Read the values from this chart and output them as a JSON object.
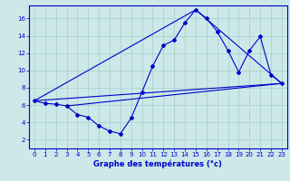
{
  "background_color": "#cce8e8",
  "line_color": "#0000cc",
  "grid_color": "#aacccc",
  "xlim": [
    -0.5,
    23.5
  ],
  "ylim": [
    1,
    17.5
  ],
  "xticks": [
    0,
    1,
    2,
    3,
    4,
    5,
    6,
    7,
    8,
    9,
    10,
    11,
    12,
    13,
    14,
    15,
    16,
    17,
    18,
    19,
    20,
    21,
    22,
    23
  ],
  "yticks": [
    2,
    4,
    6,
    8,
    10,
    12,
    14,
    16
  ],
  "xlabel": "Graphe des températures (°c)",
  "hourly_x": [
    0,
    1,
    2,
    3,
    4,
    5,
    6,
    7,
    8,
    9,
    10,
    11,
    12,
    13,
    14,
    15,
    16,
    17,
    18,
    19,
    20,
    21,
    22,
    23
  ],
  "hourly_y": [
    6.5,
    6.2,
    6.1,
    5.9,
    4.9,
    4.6,
    3.6,
    3.0,
    2.7,
    4.5,
    7.5,
    10.5,
    12.9,
    13.5,
    15.5,
    17.0,
    16.0,
    14.5,
    12.3,
    9.8,
    12.3,
    13.9,
    9.5,
    8.5
  ],
  "line1_x": [
    0,
    15
  ],
  "line1_y": [
    6.5,
    17.0
  ],
  "line2_x": [
    0,
    23
  ],
  "line2_y": [
    6.5,
    8.5
  ],
  "line3_x": [
    15,
    23
  ],
  "line3_y": [
    17.0,
    8.5
  ],
  "line4_x": [
    3,
    23
  ],
  "line4_y": [
    5.9,
    8.5
  ]
}
